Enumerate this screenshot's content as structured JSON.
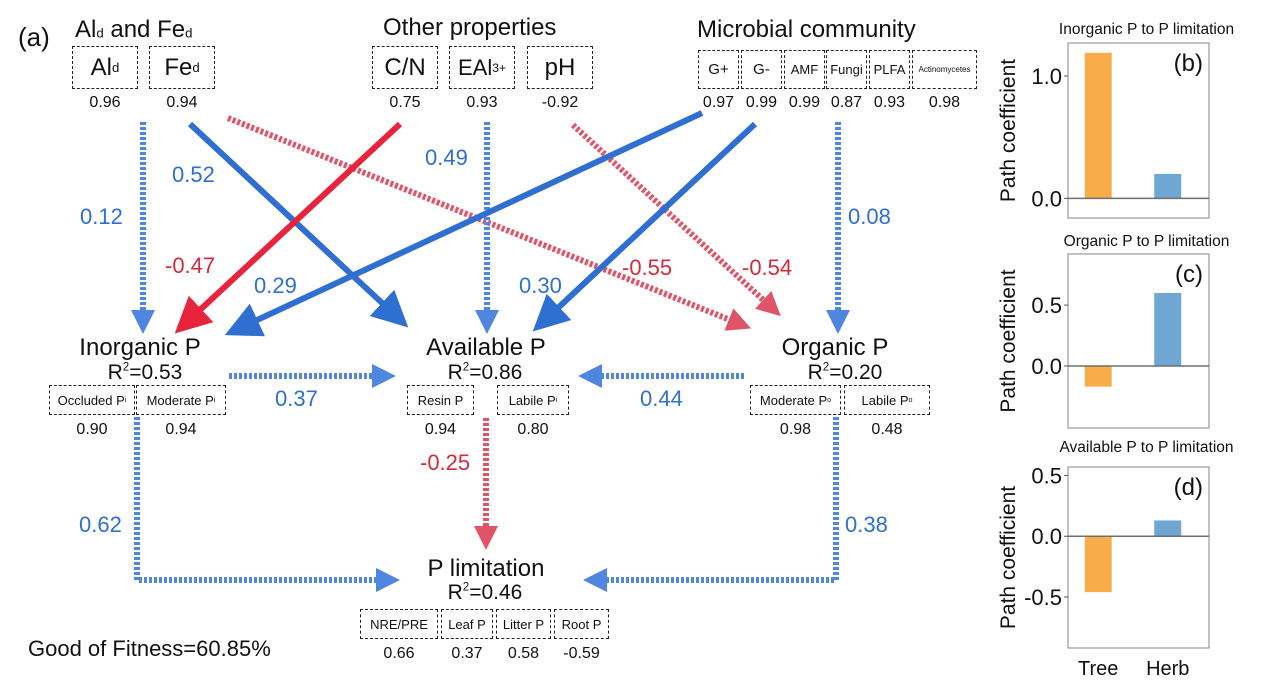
{
  "panel_a": {
    "label": "(a)",
    "groups": {
      "ald_fed": {
        "title_parts": [
          [
            "Al",
            "d"
          ],
          [
            " and Fe",
            "d"
          ]
        ],
        "indicators": [
          {
            "name": "Al",
            "sub": "d",
            "loading": "0.96"
          },
          {
            "name": "Fe",
            "sub": "d",
            "loading": "0.94"
          }
        ]
      },
      "other": {
        "title": "Other properties",
        "indicators": [
          {
            "name": "C/N",
            "loading": "0.75"
          },
          {
            "name": "EAl",
            "sup": "3+",
            "loading": "0.93"
          },
          {
            "name": "pH",
            "loading": "-0.92"
          }
        ]
      },
      "microbial": {
        "title": "Microbial community",
        "indicators": [
          {
            "name": "G+",
            "loading": "0.97"
          },
          {
            "name": "G-",
            "loading": "0.99"
          },
          {
            "name": "AMF",
            "loading": "0.99"
          },
          {
            "name": "Fungi",
            "loading": "0.87"
          },
          {
            "name": "PLFA",
            "loading": "0.93"
          },
          {
            "name": "Actinomycetes",
            "loading": "0.98"
          }
        ]
      }
    },
    "nodes": {
      "inorganic": {
        "title": "Inorganic P",
        "r2_label": "R",
        "r2_value": "=0.53",
        "indicators": [
          {
            "name": "Occluded P",
            "sub": "i",
            "loading": "0.90"
          },
          {
            "name": "Moderate P",
            "sub": "i",
            "loading": "0.94"
          }
        ]
      },
      "available": {
        "title": "Available P",
        "r2_label": "R",
        "r2_value": "=0.86",
        "indicators": [
          {
            "name": "Resin P",
            "loading": "0.94"
          },
          {
            "name": "Labile P",
            "sub": "i",
            "loading": "0.80"
          }
        ]
      },
      "organic": {
        "title": "Organic P",
        "r2_label": "R",
        "r2_value": "=0.20",
        "indicators": [
          {
            "name": "Moderate P",
            "sub": "o",
            "loading": "0.98"
          },
          {
            "name": "Labile P",
            "sub": "o",
            "loading": "0.48"
          }
        ]
      },
      "plimitation": {
        "title": "P limitation",
        "r2_label": "R",
        "r2_value": "=0.46",
        "indicators": [
          {
            "name": "NRE/PRE",
            "loading": "0.66"
          },
          {
            "name": "Leaf P",
            "loading": "0.37"
          },
          {
            "name": "Litter P",
            "loading": "0.58"
          },
          {
            "name": "Root P",
            "loading": "-0.59"
          }
        ]
      }
    },
    "r2_sup": "2",
    "paths": [
      {
        "from": "Ald and Fed",
        "to": "Inorganic P",
        "coef": "0.12",
        "sign": "positive",
        "significant": false
      },
      {
        "from": "Ald and Fed",
        "to": "Available P",
        "coef": "0.52",
        "sign": "positive",
        "significant": true
      },
      {
        "from": "Ald and Fed",
        "to": "Organic P",
        "coef": "-0.55",
        "sign": "negative",
        "significant": false
      },
      {
        "from": "Other properties",
        "to": "Inorganic P",
        "coef": "-0.47",
        "sign": "negative",
        "significant": true
      },
      {
        "from": "Other properties",
        "to": "Available P",
        "coef": "0.49",
        "sign": "positive",
        "significant": false
      },
      {
        "from": "Other properties",
        "to": "Organic P",
        "coef": "-0.54",
        "sign": "negative",
        "significant": false
      },
      {
        "from": "Microbial community",
        "to": "Inorganic P",
        "coef": "0.29",
        "sign": "positive",
        "significant": true
      },
      {
        "from": "Microbial community",
        "to": "Available P",
        "coef": "0.30",
        "sign": "positive",
        "significant": true
      },
      {
        "from": "Microbial community",
        "to": "Organic P",
        "coef": "0.08",
        "sign": "positive",
        "significant": false
      },
      {
        "from": "Inorganic P",
        "to": "Available P",
        "coef": "0.37",
        "sign": "positive",
        "significant": false
      },
      {
        "from": "Organic P",
        "to": "Available P",
        "coef": "0.44",
        "sign": "positive",
        "significant": false
      },
      {
        "from": "Available P",
        "to": "P limitation",
        "coef": "-0.25",
        "sign": "negative",
        "significant": false
      },
      {
        "from": "Inorganic P",
        "to": "P limitation",
        "coef": "0.62",
        "sign": "positive",
        "significant": false
      },
      {
        "from": "Organic P",
        "to": "P limitation",
        "coef": "0.38",
        "sign": "positive",
        "significant": false
      }
    ],
    "goodness_of_fit": "Good of Fitness=60.85%",
    "colors": {
      "positive": "#2f6fd1",
      "positive_dashed": "#4f86e0",
      "negative": "#e8243d",
      "negative_dashed": "#e05468"
    }
  },
  "chart_data": [
    {
      "type": "bar",
      "panel": "(b)",
      "title": "Inorganic P to P limitation",
      "categories": [
        "Tree",
        "Herb"
      ],
      "values": [
        1.19,
        0.2
      ],
      "ylabel": "Path coefficient",
      "xlabel": "",
      "yticks": [
        0.0,
        1.0
      ],
      "ytick_labels": [
        "0.0",
        "1.0"
      ],
      "ylim": [
        -0.16,
        1.27
      ],
      "show_xtick_labels": false,
      "colors": [
        "#f9ad4a",
        "#6fa6d2"
      ]
    },
    {
      "type": "bar",
      "panel": "(c)",
      "title": "Organic P to P limitation",
      "categories": [
        "Tree",
        "Herb"
      ],
      "values": [
        -0.17,
        0.6
      ],
      "ylabel": "Path coefficient",
      "xlabel": "",
      "yticks": [
        0.0,
        0.5
      ],
      "ytick_labels": [
        "0.0",
        "0.5"
      ],
      "ylim": [
        -0.51,
        0.92
      ],
      "show_xtick_labels": false,
      "colors": [
        "#f9ad4a",
        "#6fa6d2"
      ]
    },
    {
      "type": "bar",
      "panel": "(d)",
      "title": "Available P to P limitation",
      "categories": [
        "Tree",
        "Herb"
      ],
      "values": [
        -0.46,
        0.13
      ],
      "ylabel": "Path coefficient",
      "xlabel": "",
      "yticks": [
        -0.5,
        0.0,
        0.5
      ],
      "ytick_labels": [
        "-0.5",
        "0.0",
        "0.5"
      ],
      "ylim": [
        -0.92,
        0.57
      ],
      "show_xtick_labels": true,
      "colors": [
        "#f9ad4a",
        "#6fa6d2"
      ]
    }
  ]
}
